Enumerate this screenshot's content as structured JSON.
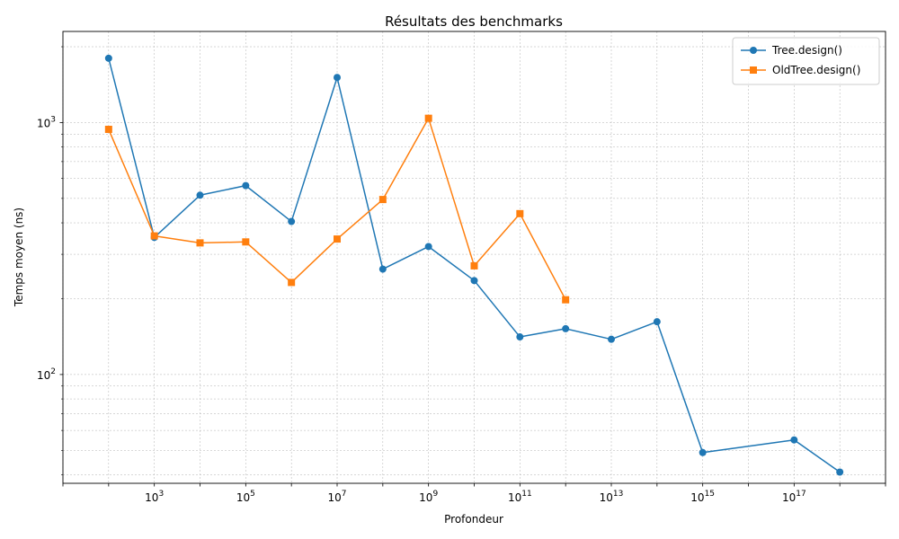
{
  "chart_data": {
    "type": "line",
    "title": "Résultats des benchmarks",
    "xlabel": "Profondeur",
    "ylabel": "Temps moyen (ns)",
    "xscale": "log",
    "yscale": "log",
    "xlim": [
      10,
      1e+19
    ],
    "ylim": [
      37,
      2300
    ],
    "grid": true,
    "legend_position": "top-right",
    "x_ticks": [
      {
        "value": 1000.0,
        "base": "10",
        "exp": "3"
      },
      {
        "value": 100000.0,
        "base": "10",
        "exp": "5"
      },
      {
        "value": 10000000.0,
        "base": "10",
        "exp": "7"
      },
      {
        "value": 1000000000.0,
        "base": "10",
        "exp": "9"
      },
      {
        "value": 100000000000.0,
        "base": "10",
        "exp": "11"
      },
      {
        "value": 10000000000000.0,
        "base": "10",
        "exp": "13"
      },
      {
        "value": 1000000000000000.0,
        "base": "10",
        "exp": "15"
      },
      {
        "value": 1e+17,
        "base": "10",
        "exp": "17"
      }
    ],
    "y_ticks": [
      {
        "value": 100,
        "base": "10",
        "exp": "2"
      },
      {
        "value": 1000,
        "base": "10",
        "exp": "3"
      }
    ],
    "series": [
      {
        "name": "Tree.design()",
        "color": "#1f77b4",
        "marker": "circle",
        "points": [
          [
            100.0,
            1800
          ],
          [
            1000.0,
            350
          ],
          [
            10000.0,
            515
          ],
          [
            100000.0,
            562
          ],
          [
            1000000.0,
            405
          ],
          [
            10000000.0,
            1510
          ],
          [
            100000000.0,
            262
          ],
          [
            1000000000.0,
            322
          ],
          [
            10000000000.0,
            236
          ],
          [
            100000000000.0,
            141
          ],
          [
            1000000000000.0,
            152
          ],
          [
            10000000000000.0,
            138
          ],
          [
            100000000000000.0,
            162
          ],
          [
            1000000000000000.0,
            49
          ],
          [
            1e+17,
            55
          ],
          [
            1e+18,
            41
          ]
        ]
      },
      {
        "name": "OldTree.design()",
        "color": "#ff7f0e",
        "marker": "square",
        "points": [
          [
            100.0,
            940
          ],
          [
            1000.0,
            355
          ],
          [
            10000.0,
            333
          ],
          [
            100000.0,
            336
          ],
          [
            1000000.0,
            232
          ],
          [
            10000000.0,
            345
          ],
          [
            100000000.0,
            495
          ],
          [
            1000000000.0,
            1040
          ],
          [
            10000000000.0,
            270
          ],
          [
            100000000000.0,
            435
          ],
          [
            1000000000000.0,
            198
          ]
        ]
      }
    ]
  }
}
